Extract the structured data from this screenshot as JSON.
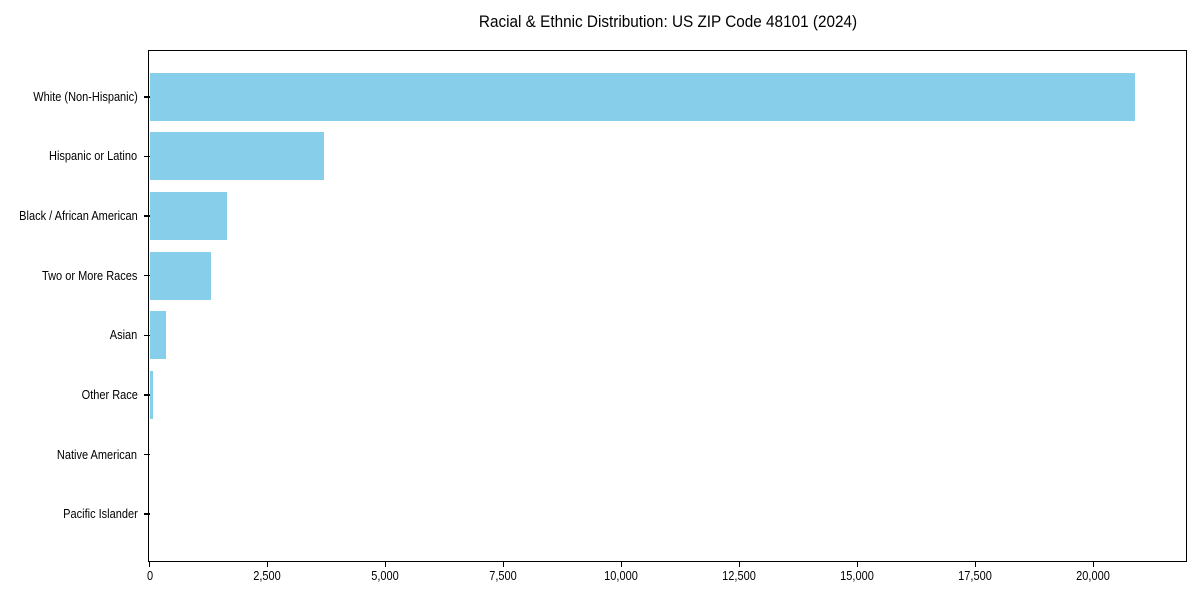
{
  "page": {
    "background": "#ffffff"
  },
  "colors": {
    "bar": "#87CEEB",
    "axis": "#000000",
    "text": "#000000"
  },
  "chart_data": {
    "type": "bar",
    "orientation": "horizontal",
    "title": "Racial & Ethnic Distribution: US ZIP Code 48101 (2024)",
    "xlabel": "",
    "ylabel": "",
    "categories": [
      "White (Non-Hispanic)",
      "Hispanic or Latino",
      "Black / African American",
      "Two or More Races",
      "Asian",
      "Other Race",
      "Native American",
      "Pacific Islander"
    ],
    "values": [
      20890,
      3690,
      1650,
      1310,
      340,
      65,
      0,
      0
    ],
    "xlim": [
      0,
      21950
    ],
    "xticks": [
      {
        "value": 0,
        "label": "0"
      },
      {
        "value": 2500,
        "label": "2,500"
      },
      {
        "value": 5000,
        "label": "5,000"
      },
      {
        "value": 7500,
        "label": "7,500"
      },
      {
        "value": 10000,
        "label": "10,000"
      },
      {
        "value": 12500,
        "label": "12,500"
      },
      {
        "value": 15000,
        "label": "15,000"
      },
      {
        "value": 17500,
        "label": "17,500"
      },
      {
        "value": 20000,
        "label": "20,000"
      }
    ],
    "grid": false,
    "legend": "none"
  }
}
